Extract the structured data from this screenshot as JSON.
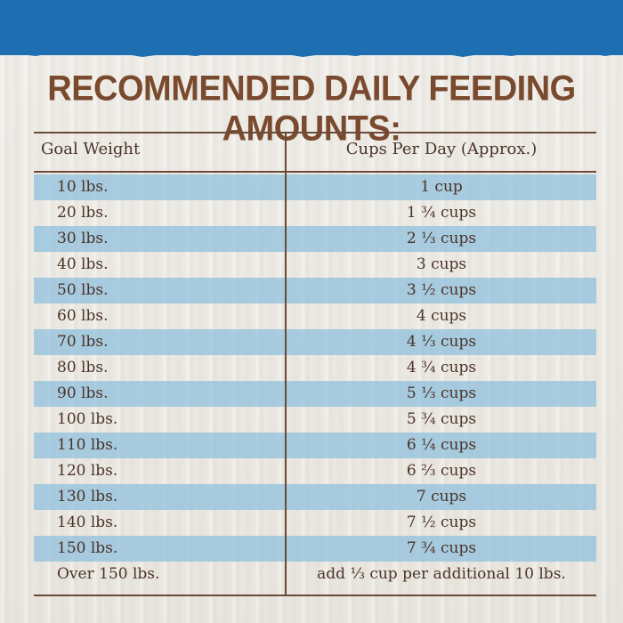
{
  "title": "RECOMMENDED DAILY FEEDING AMOUNTS:",
  "table": {
    "headers": {
      "weight": "Goal Weight",
      "cups": "Cups Per Day (Approx.)"
    },
    "rows": [
      {
        "weight": "10 lbs.",
        "cups": "1 cup"
      },
      {
        "weight": "20 lbs.",
        "cups": "1 ¾ cups"
      },
      {
        "weight": "30 lbs.",
        "cups": "2 ⅓ cups"
      },
      {
        "weight": "40 lbs.",
        "cups": "3 cups"
      },
      {
        "weight": "50 lbs.",
        "cups": "3 ½ cups"
      },
      {
        "weight": "60 lbs.",
        "cups": "4 cups"
      },
      {
        "weight": "70 lbs.",
        "cups": "4 ⅓ cups"
      },
      {
        "weight": "80 lbs.",
        "cups": "4 ¾ cups"
      },
      {
        "weight": "90 lbs.",
        "cups": "5 ⅓ cups"
      },
      {
        "weight": "100 lbs.",
        "cups": "5 ¾ cups"
      },
      {
        "weight": "110 lbs.",
        "cups": "6 ¼ cups"
      },
      {
        "weight": "120 lbs.",
        "cups": "6 ⅔ cups"
      },
      {
        "weight": "130 lbs.",
        "cups": "7 cups"
      },
      {
        "weight": "140 lbs.",
        "cups": "7 ½ cups"
      },
      {
        "weight": "150 lbs.",
        "cups": "7 ¾ cups"
      },
      {
        "weight": "Over 150 lbs.",
        "cups": "add ⅓ cup per additional 10 lbs."
      }
    ]
  },
  "colors": {
    "band": "#1e6fb1",
    "title": "#7a4a2f",
    "stripe": "#93c1de",
    "text": "#4a3428"
  }
}
